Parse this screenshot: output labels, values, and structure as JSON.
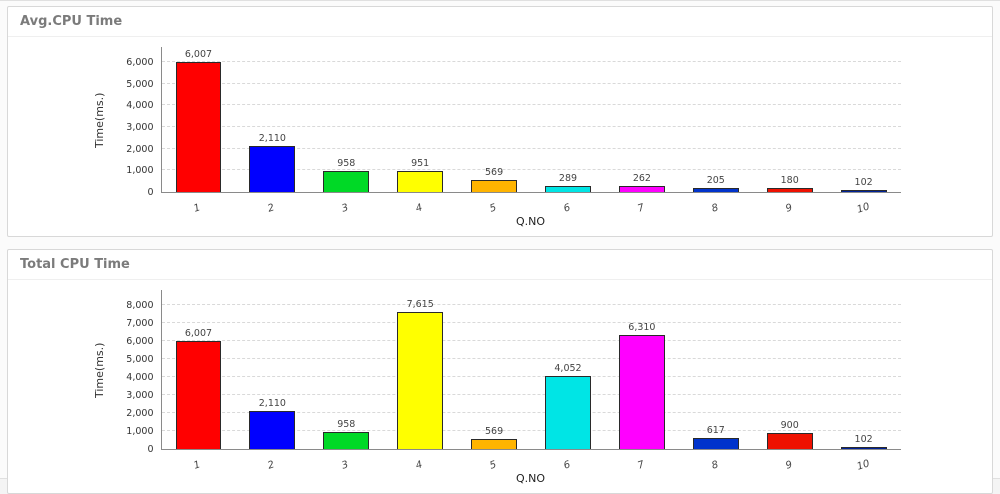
{
  "panels": [
    {
      "title": "Avg.CPU Time"
    },
    {
      "title": "Total CPU Time"
    }
  ],
  "chart_data": [
    {
      "type": "bar",
      "title": "Avg.CPU Time",
      "xlabel": "Q.NO",
      "ylabel": "Time(ms.)",
      "categories": [
        "1",
        "2",
        "3",
        "4",
        "5",
        "6",
        "7",
        "8",
        "9",
        "10"
      ],
      "values": [
        6007,
        2110,
        958,
        951,
        569,
        289,
        262,
        205,
        180,
        102
      ],
      "value_labels": [
        "6,007",
        "2,110",
        "958",
        "951",
        "569",
        "289",
        "262",
        "205",
        "180",
        "102"
      ],
      "bar_colors": [
        "#ff0000",
        "#0000ff",
        "#00d926",
        "#ffff00",
        "#ffb400",
        "#00e5e5",
        "#ff00ff",
        "#0033cc",
        "#ee1100",
        "#002299"
      ],
      "ylim": [
        0,
        6000
      ],
      "yticks": [
        0,
        1000,
        2000,
        3000,
        4000,
        5000,
        6000
      ],
      "ytick_labels": [
        "0",
        "1,000",
        "2,000",
        "3,000",
        "4,000",
        "5,000",
        "6,000"
      ],
      "grid": "dashed-horizontal",
      "legend": "none"
    },
    {
      "type": "bar",
      "title": "Total CPU Time",
      "xlabel": "Q.NO",
      "ylabel": "Time(ms.)",
      "categories": [
        "1",
        "2",
        "3",
        "4",
        "5",
        "6",
        "7",
        "8",
        "9",
        "10"
      ],
      "values": [
        6007,
        2110,
        958,
        7615,
        569,
        4052,
        6310,
        617,
        900,
        102
      ],
      "value_labels": [
        "6,007",
        "2,110",
        "958",
        "7,615",
        "569",
        "4,052",
        "6,310",
        "617",
        "900",
        "102"
      ],
      "bar_colors": [
        "#ff0000",
        "#0000ff",
        "#00d926",
        "#ffff00",
        "#ffb400",
        "#00e5e5",
        "#ff00ff",
        "#0033cc",
        "#ee1100",
        "#002299"
      ],
      "ylim": [
        0,
        8000
      ],
      "yticks": [
        0,
        1000,
        2000,
        3000,
        4000,
        5000,
        6000,
        7000,
        8000
      ],
      "ytick_labels": [
        "0",
        "1,000",
        "2,000",
        "3,000",
        "4,000",
        "5,000",
        "6,000",
        "7,000",
        "8,000"
      ],
      "grid": "dashed-horizontal",
      "legend": "none"
    }
  ]
}
